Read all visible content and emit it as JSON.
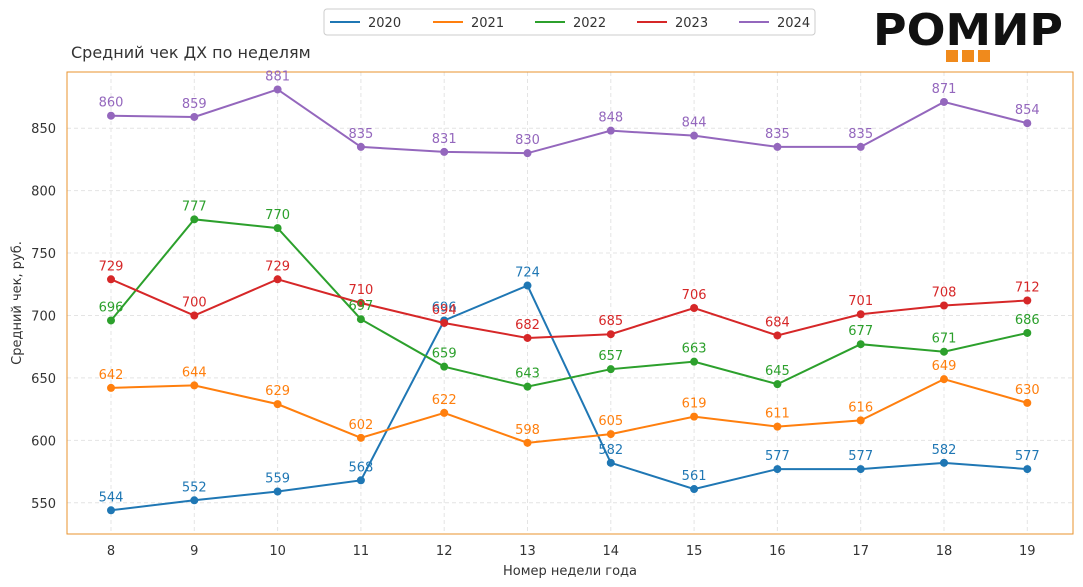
{
  "chart_data": {
    "type": "line",
    "title": "Средний чек ДХ по неделям",
    "xlabel": "Номер недели года",
    "ylabel": "Средний чек, руб.",
    "categories": [
      8,
      9,
      10,
      11,
      12,
      13,
      14,
      15,
      16,
      17,
      18,
      19
    ],
    "ylim": [
      525,
      895
    ],
    "yticks": [
      550,
      600,
      650,
      700,
      750,
      800,
      850
    ],
    "grid": true,
    "legend_position": "top-center",
    "series": [
      {
        "name": "2020",
        "color": "#1f77b4",
        "values": [
          544,
          552,
          559,
          568,
          696,
          724,
          582,
          561,
          577,
          577,
          582,
          577
        ]
      },
      {
        "name": "2021",
        "color": "#ff7f0e",
        "values": [
          642,
          644,
          629,
          602,
          622,
          598,
          605,
          619,
          611,
          616,
          649,
          630
        ]
      },
      {
        "name": "2022",
        "color": "#2ca02c",
        "values": [
          696,
          777,
          770,
          697,
          659,
          643,
          657,
          663,
          645,
          677,
          671,
          686
        ]
      },
      {
        "name": "2023",
        "color": "#d62728",
        "values": [
          729,
          700,
          729,
          710,
          694,
          682,
          685,
          706,
          684,
          701,
          708,
          712
        ]
      },
      {
        "name": "2024",
        "color": "#9467bd",
        "values": [
          860,
          859,
          881,
          835,
          831,
          830,
          848,
          844,
          835,
          835,
          871,
          854
        ]
      }
    ]
  },
  "logo": {
    "text": "РОМИР",
    "square_color": "#f08a1c"
  }
}
